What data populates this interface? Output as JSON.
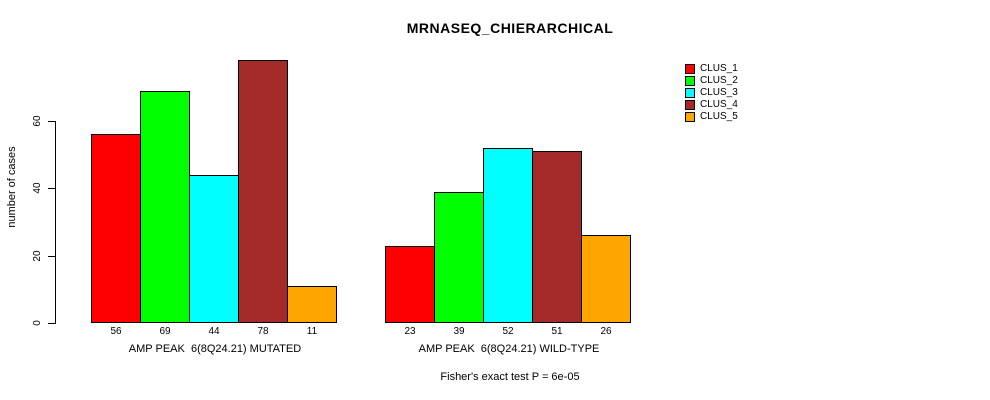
{
  "chart_data": {
    "type": "bar",
    "title": "MRNASEQ_CHIERARCHICAL",
    "ylabel": "number of cases",
    "annotation": "Fisher's exact test P = 6e-05",
    "yticks": [
      0,
      20,
      40,
      60
    ],
    "ylim": [
      0,
      78
    ],
    "grid": false,
    "legend_position": "top-right-outside",
    "series": [
      {
        "name": "CLUS_1",
        "color": "#FF0000"
      },
      {
        "name": "CLUS_2",
        "color": "#00FF00"
      },
      {
        "name": "CLUS_3",
        "color": "#00FFFF"
      },
      {
        "name": "CLUS_4",
        "color": "#A52A2A"
      },
      {
        "name": "CLUS_5",
        "color": "#FFA500"
      }
    ],
    "groups": [
      {
        "label": "AMP PEAK  6(8Q24.21) MUTATED",
        "values": [
          56,
          69,
          44,
          78,
          11
        ]
      },
      {
        "label": "AMP PEAK  6(8Q24.21) WILD-TYPE",
        "values": [
          23,
          39,
          52,
          51,
          26
        ]
      }
    ]
  },
  "colors": {
    "background": "#FFFFFF",
    "axis": "#000000",
    "text": "#000000",
    "bar_border": "#000000"
  }
}
